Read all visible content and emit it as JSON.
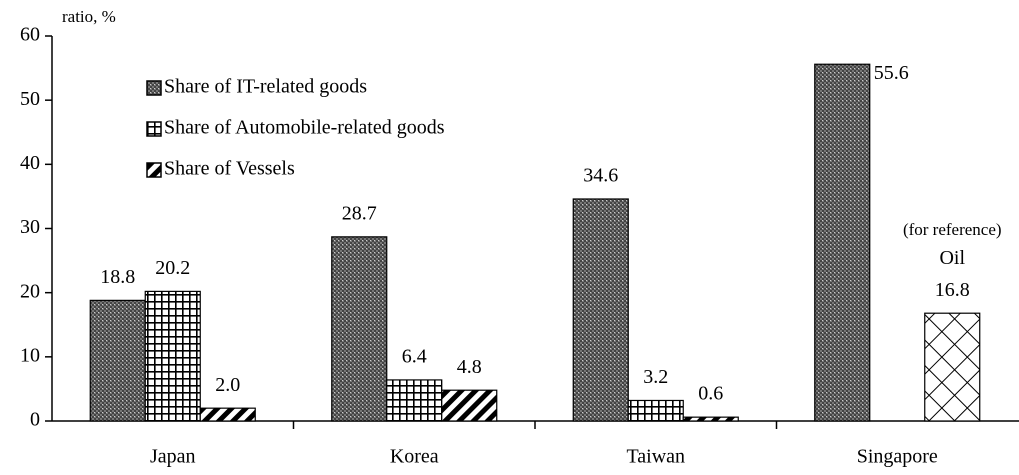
{
  "chart_data": {
    "type": "bar",
    "y_label": "ratio, %",
    "categories": [
      "Japan",
      "Korea",
      "Taiwan",
      "Singapore"
    ],
    "series": [
      {
        "name": "Share of IT-related goods",
        "pattern": "dots",
        "values": [
          18.8,
          28.7,
          34.6,
          55.6
        ]
      },
      {
        "name": "Share of Automobile-related goods",
        "pattern": "grid",
        "values": [
          20.2,
          6.4,
          3.2,
          null
        ]
      },
      {
        "name": "Share of Vessels",
        "pattern": "stripes",
        "values": [
          2.0,
          4.8,
          0.6,
          null
        ],
        "value_labels": [
          "2.0",
          "4.8",
          "0.6",
          null
        ]
      },
      {
        "name": "Oil",
        "pattern": "crosshatch",
        "values": [
          null,
          null,
          null,
          16.8
        ],
        "annotation": "(for reference)",
        "legend": false
      }
    ],
    "ylim": [
      0,
      60
    ],
    "yticks": [
      0,
      10,
      20,
      30,
      40,
      50,
      60
    ],
    "grid": false,
    "legend": "upper left"
  }
}
